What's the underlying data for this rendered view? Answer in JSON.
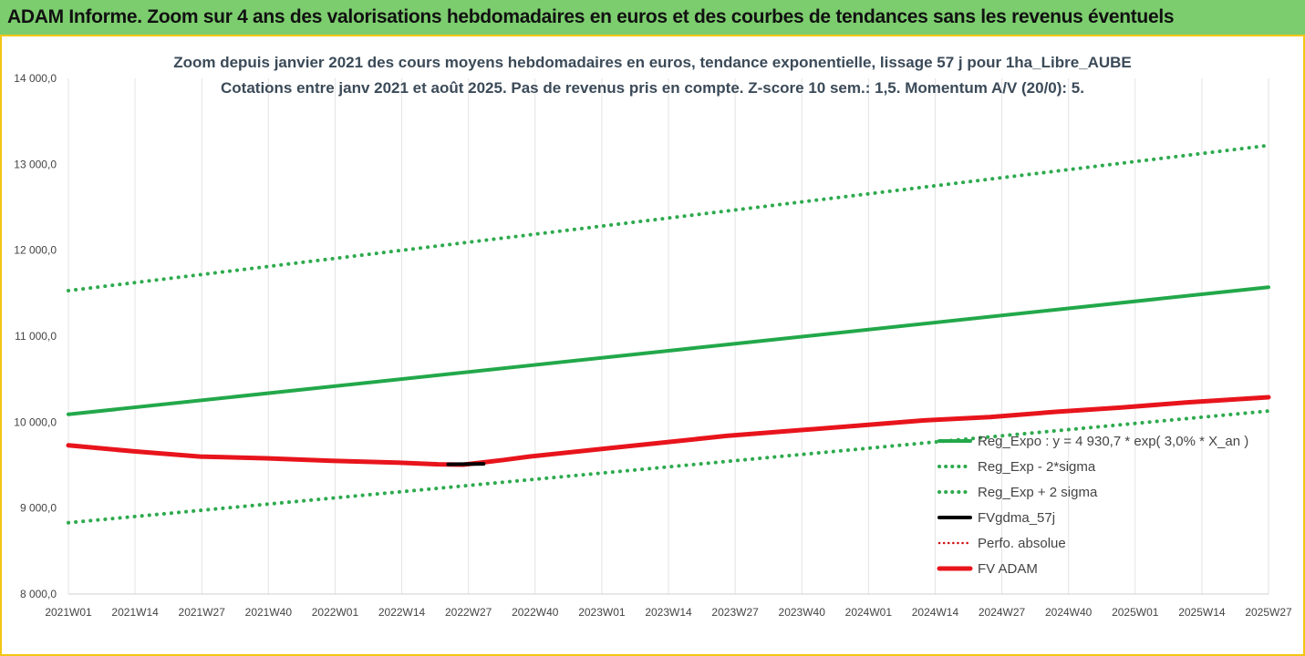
{
  "header": {
    "title": "ADAM Informe. Zoom sur 4 ans des valorisations hebdomadaires en euros et des courbes de tendances sans les revenus éventuels"
  },
  "colors": {
    "header_bg": "#7ccd6e",
    "frame": "#f3c613",
    "trend_green": "#22a84a",
    "dotted_green": "#2eaa4e",
    "fvadam_red": "#e8141c",
    "gdma_black": "#000000",
    "perfo_red": "#d01010",
    "grid": "#e3e3e3"
  },
  "chart_data": {
    "type": "line",
    "title": "Zoom depuis janvier 2021 des cours moyens hebdomadaires en euros, tendance exponentielle, lissage 57 j pour 1ha_Libre_AUBE",
    "subtitle": "Cotations entre janv 2021 et août 2025.  Pas de revenus pris en compte. Z-score 10 sem.: 1,5. Momentum A/V (20/0): 5.",
    "xlabel": "",
    "ylabel": "",
    "ylim": [
      8000,
      14000
    ],
    "yticks": [
      "14 000,0",
      "13 000,0",
      "12 000,0",
      "11 000,0",
      "10 000,0",
      "9 000,0",
      "8 000,0"
    ],
    "ytick_values": [
      14000,
      13000,
      12000,
      11000,
      10000,
      9000,
      8000
    ],
    "x_range_weeks": [
      0,
      237
    ],
    "xtick_labels": [
      "2021W01",
      "2021W14",
      "2021W27",
      "2021W40",
      "2022W01",
      "2022W14",
      "2022W27",
      "2022W40",
      "2023W01",
      "2023W14",
      "2023W27",
      "2023W40",
      "2024W01",
      "2024W14",
      "2024W27",
      "2024W40",
      "2025W01",
      "2025W14",
      "2025W27"
    ],
    "legend_position": "right",
    "grid": "vertical",
    "series": [
      {
        "name": "Reg_Expo : y = 4 930,7 * exp( 3,0% *  X_an )",
        "style": "solid",
        "color": "#22a84a",
        "x": [
          0,
          237
        ],
        "values": [
          10090,
          11570
        ]
      },
      {
        "name": "Reg_Exp - 2*sigma",
        "style": "dotted",
        "color": "#2eaa4e",
        "x": [
          0,
          237
        ],
        "values": [
          8830,
          10130
        ]
      },
      {
        "name": "Reg_Exp + 2 sigma",
        "style": "dotted",
        "color": "#2eaa4e",
        "x": [
          0,
          237
        ],
        "values": [
          11530,
          13220
        ]
      },
      {
        "name": "FVgdma_57j",
        "style": "solid",
        "color": "#000000",
        "x": [
          75,
          82
        ],
        "values": [
          9510,
          9515
        ]
      },
      {
        "name": "Perfo. absolue",
        "style": "dotted",
        "color": "#d01010",
        "x": [],
        "values": []
      },
      {
        "name": "FV ADAM",
        "style": "solid-thick",
        "color": "#e8141c",
        "x": [
          0,
          13,
          26,
          39,
          52,
          65,
          73,
          78,
          86,
          91,
          104,
          117,
          130,
          143,
          156,
          169,
          182,
          195,
          208,
          221,
          237
        ],
        "values": [
          9730,
          9660,
          9600,
          9580,
          9550,
          9530,
          9510,
          9505,
          9560,
          9600,
          9680,
          9760,
          9840,
          9900,
          9960,
          10020,
          10060,
          10120,
          10170,
          10230,
          10290
        ]
      }
    ]
  }
}
